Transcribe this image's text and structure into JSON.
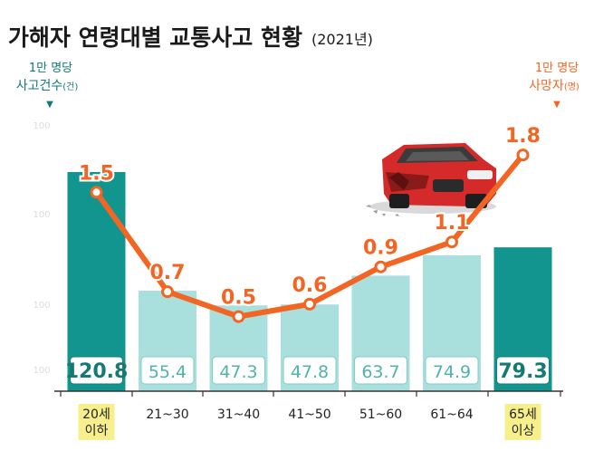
{
  "title": "가해자 연령대별 교통사고 현황",
  "title_year": "(2021년)",
  "left_axis": {
    "unit_line1": "1만 명당",
    "unit_line2": "사고건수",
    "unit_suffix": "(건)",
    "arrow": "▼",
    "tick_labels": [
      "100",
      "100",
      "100",
      "100"
    ]
  },
  "right_axis": {
    "unit_line1": "1만 명당",
    "unit_line2": "사망자",
    "unit_suffix": "(명)",
    "arrow": "▼"
  },
  "colors": {
    "teal_dark": "#12958e",
    "teal_light": "#a9e0dd",
    "line": "#f26522",
    "axis_label_teal": "#127a74",
    "highlight_tag": "#f7ef8c",
    "box_text_dark": "#167a73",
    "box_text_light": "#4fb3ac"
  },
  "icon": "damaged-red-car",
  "chart_data": {
    "type": "bar+line",
    "title": "가해자 연령대별 교통사고 현황 (2021년)",
    "categories": [
      "20세 이하",
      "21~30",
      "31~40",
      "41~50",
      "51~60",
      "61~64",
      "65세 이상"
    ],
    "category_lines": [
      [
        "20세",
        "이하"
      ],
      [
        "21~30"
      ],
      [
        "31~40"
      ],
      [
        "41~50"
      ],
      [
        "51~60"
      ],
      [
        "61~64"
      ],
      [
        "65세",
        "이상"
      ]
    ],
    "highlighted": [
      true,
      false,
      false,
      false,
      false,
      false,
      true
    ],
    "series": [
      {
        "name": "1만 명당 사고건수(건)",
        "kind": "bar",
        "axis": "left",
        "values": [
          120.8,
          55.4,
          47.3,
          47.8,
          63.7,
          74.9,
          79.3
        ],
        "labels": [
          "120.8",
          "55.4",
          "47.3",
          "47.8",
          "63.7",
          "74.9",
          "79.3"
        ]
      },
      {
        "name": "1만 명당 사망자(명)",
        "kind": "line",
        "axis": "right",
        "values": [
          1.5,
          0.7,
          0.5,
          0.6,
          0.9,
          1.1,
          1.8
        ],
        "labels": [
          "1.5",
          "0.7",
          "0.5",
          "0.6",
          "0.9",
          "1.1",
          "1.8"
        ]
      }
    ],
    "y_left": [
      0,
      150
    ],
    "y_right": [
      -0.1,
      2.5
    ],
    "grid": false,
    "legend": "none"
  }
}
